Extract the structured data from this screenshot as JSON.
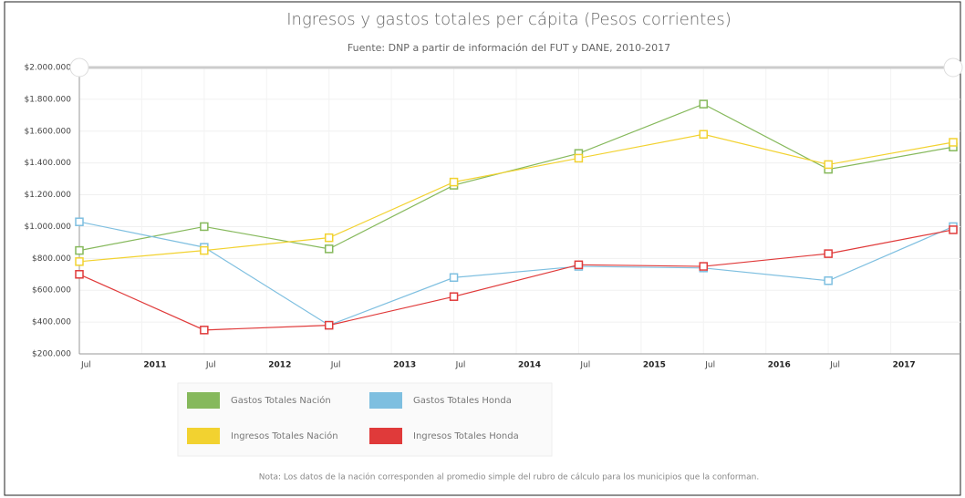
{
  "chart_data": {
    "type": "line",
    "title": "Ingresos y gastos totales per cápita (Pesos corrientes)",
    "subtitle": "Fuente: DNP a partir de información del FUT y DANE, 2010-2017",
    "note": "Nota: Los datos de la nación corresponden al promedio simple del rubro de cálculo para los municipios que la conforman.",
    "x": [
      2010.5,
      2011.5,
      2012.5,
      2013.5,
      2014.5,
      2015.5,
      2016.5,
      2017.5
    ],
    "xlim": [
      2010.5,
      2017.5
    ],
    "xticks": [
      {
        "value": 2010.5,
        "label": "Jul"
      },
      2011,
      {
        "value": 2011.5,
        "label": "Jul"
      },
      2012,
      {
        "value": 2012.5,
        "label": "Jul"
      },
      2013,
      {
        "value": 2013.5,
        "label": "Jul"
      },
      2014,
      {
        "value": 2014.5,
        "label": "Jul"
      },
      2015,
      {
        "value": 2015.5,
        "label": "Jul"
      },
      2016,
      {
        "value": 2016.5,
        "label": "Jul"
      },
      2017
    ],
    "ylim": [
      200000,
      2000000
    ],
    "yticks": [
      {
        "value": 200000,
        "label": "$200.000"
      },
      {
        "value": 400000,
        "label": "$400.000"
      },
      {
        "value": 600000,
        "label": "$600.000"
      },
      {
        "value": 800000,
        "label": "$800.000"
      },
      {
        "value": 1000000,
        "label": "$1.000.000"
      },
      {
        "value": 1200000,
        "label": "$1.200.000"
      },
      {
        "value": 1400000,
        "label": "$1.400.000"
      },
      {
        "value": 1600000,
        "label": "$1.600.000"
      },
      {
        "value": 1800000,
        "label": "$1.800.000"
      },
      {
        "value": 2000000,
        "label": "$2.000.000"
      }
    ],
    "grid": true,
    "series": [
      {
        "name": "Gastos Totales Nación",
        "color": "#86b95c",
        "values": [
          850000,
          1000000,
          860000,
          1260000,
          1460000,
          1770000,
          1360000,
          1500000
        ]
      },
      {
        "name": "Gastos Totales Honda",
        "color": "#7ebfe0",
        "values": [
          1030000,
          870000,
          380000,
          680000,
          750000,
          740000,
          660000,
          1000000
        ]
      },
      {
        "name": "Ingresos Totales Nación",
        "color": "#f2d230",
        "values": [
          780000,
          850000,
          930000,
          1280000,
          1430000,
          1580000,
          1390000,
          1530000
        ]
      },
      {
        "name": "Ingresos Totales Honda",
        "color": "#e03a3a",
        "values": [
          700000,
          350000,
          380000,
          560000,
          760000,
          750000,
          830000,
          980000
        ]
      }
    ]
  }
}
